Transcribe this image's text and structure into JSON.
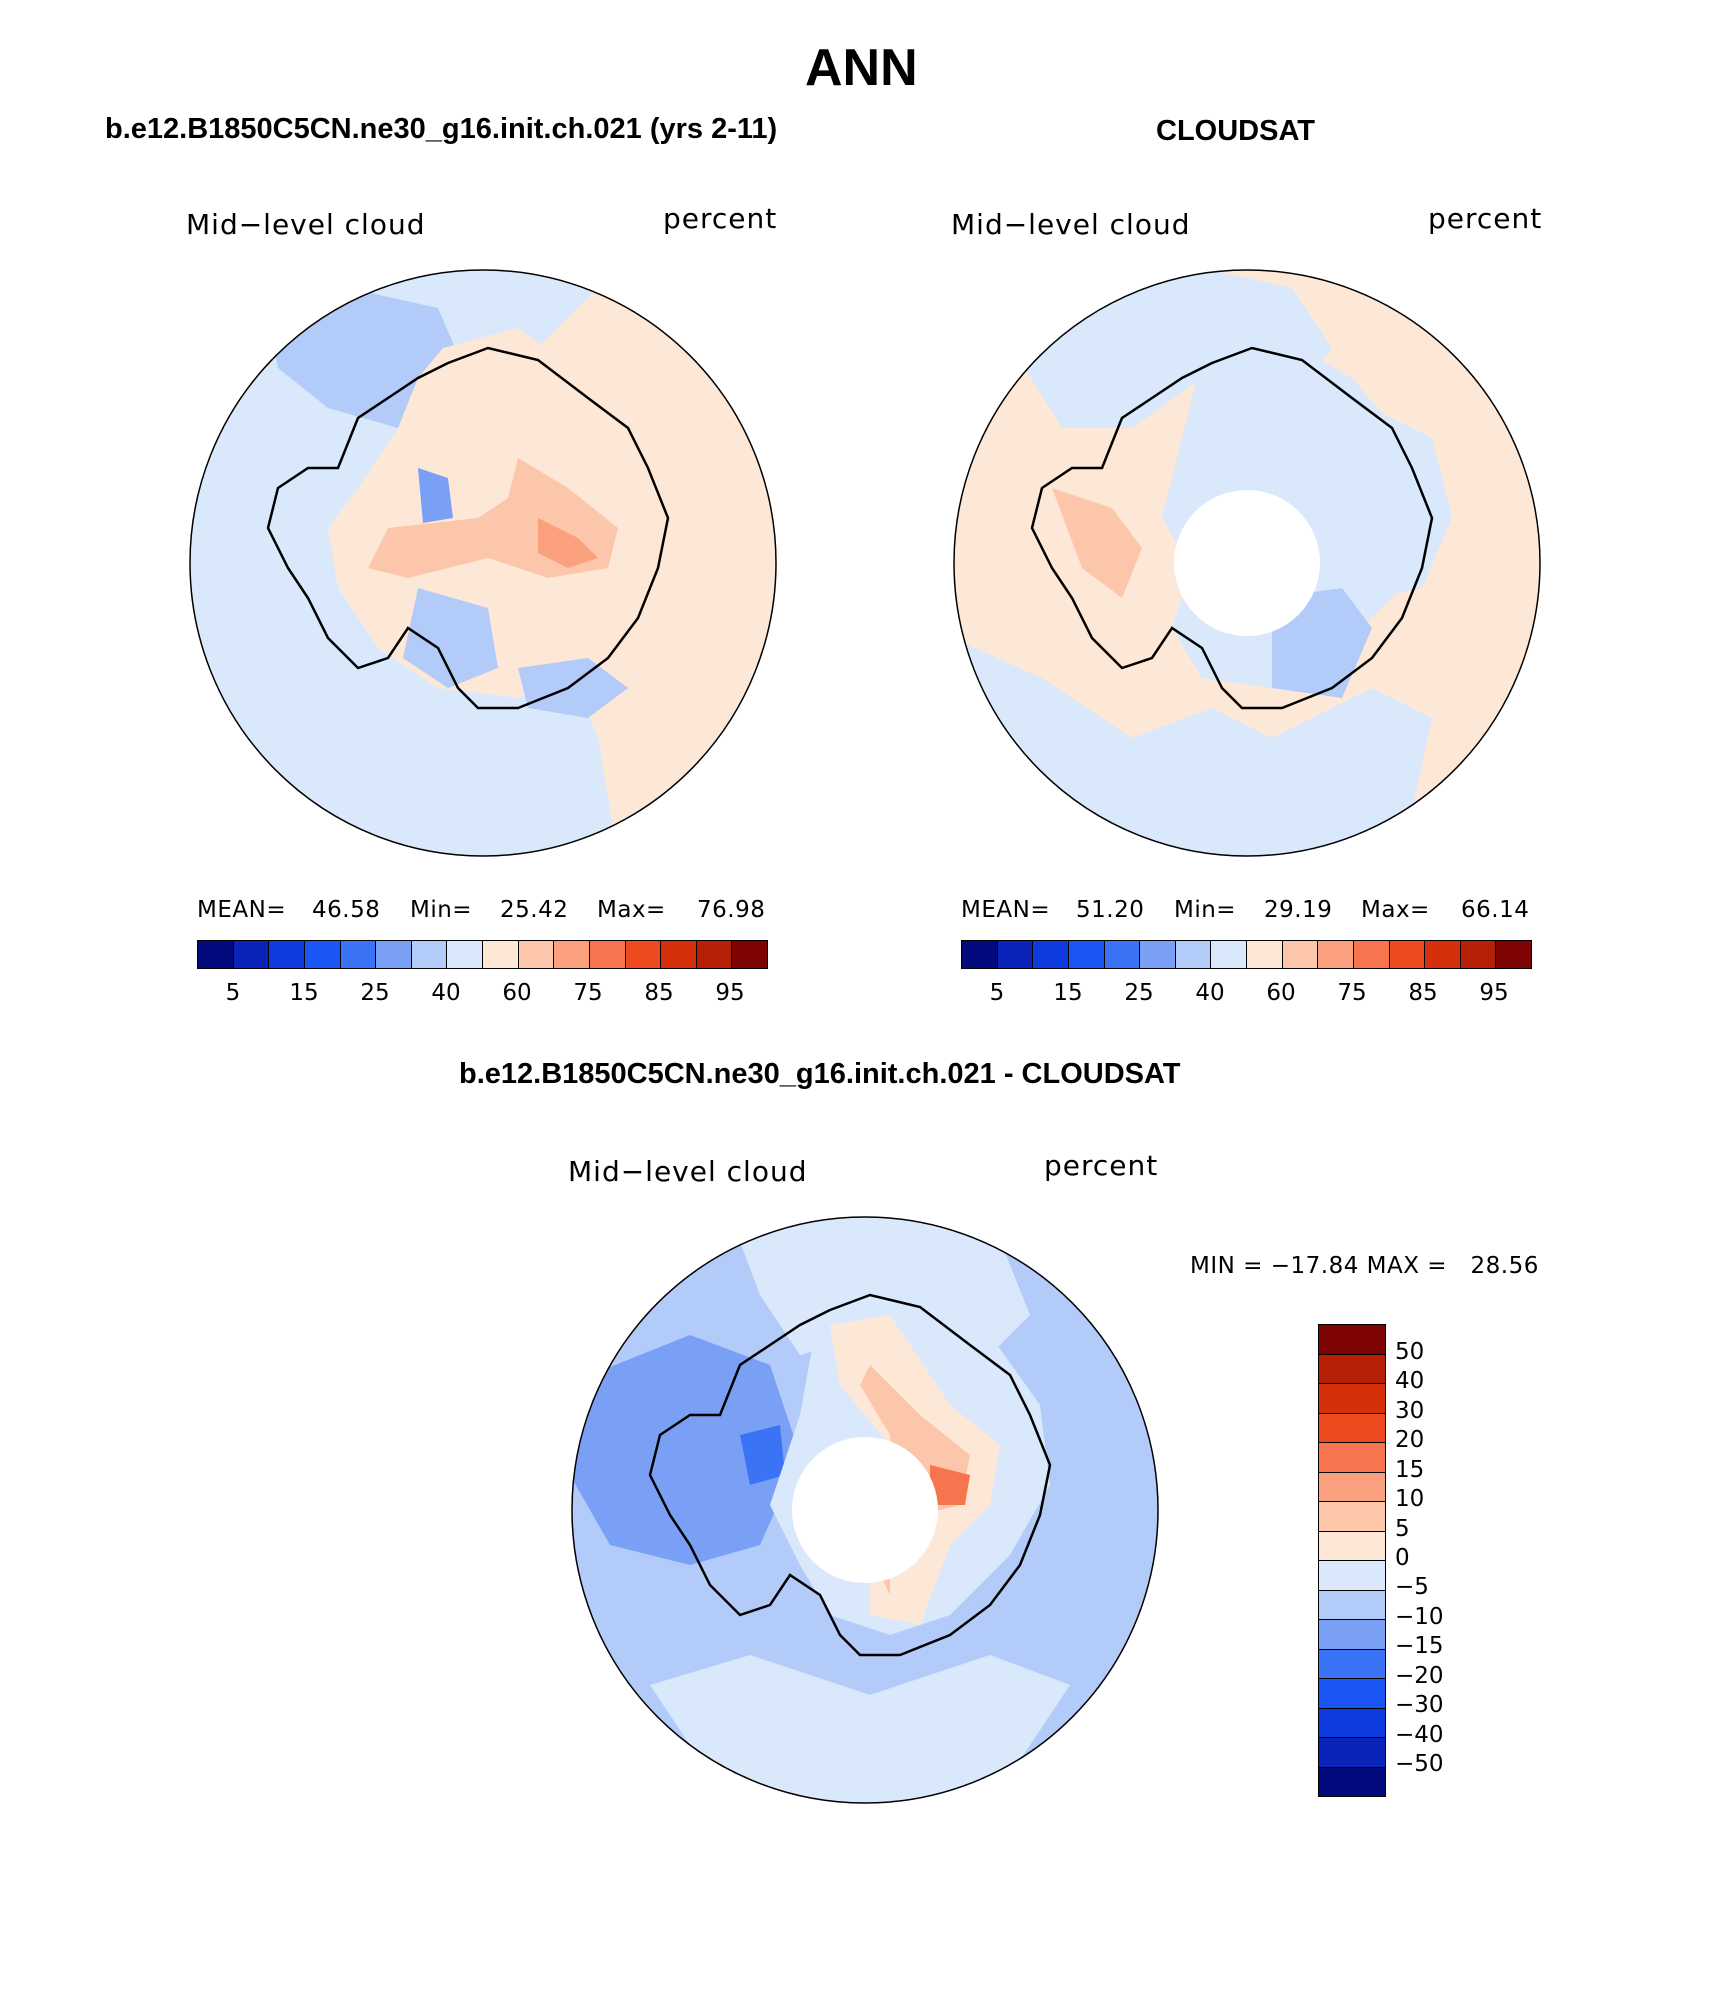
{
  "page_title": "ANN",
  "panels": [
    {
      "title": "b.e12.B1850C5CN.ne30_g16.init.ch.021 (yrs 2-11)",
      "variable": "Mid−level cloud",
      "units": "percent",
      "mean_label": "MEAN=",
      "mean": "46.58",
      "min_label": "Min=",
      "min": "25.42",
      "max_label": "Max=",
      "max": "76.98"
    },
    {
      "title": "CLOUDSAT",
      "variable": "Mid−level cloud",
      "units": "percent",
      "mean_label": "MEAN=",
      "mean": "51.20",
      "min_label": "Min=",
      "min": "29.19",
      "max_label": "Max=",
      "max": "66.14"
    }
  ],
  "diff_panel": {
    "title": "b.e12.B1850C5CN.ne30_g16.init.ch.021 - CLOUDSAT",
    "variable": "Mid−level cloud",
    "units": "percent",
    "minmax_text": "MIN = −17.84 MAX =   28.56"
  },
  "abs_colorbar": {
    "colors": [
      "#020a7e",
      "#0a23b8",
      "#0d3be0",
      "#1a56f5",
      "#3b73f7",
      "#7aa0f5",
      "#b3cbf9",
      "#d9e9fb",
      "#fde8d7",
      "#fcc6ab",
      "#fba07f",
      "#f6744e",
      "#ee4a20",
      "#d52f0b",
      "#b52007",
      "#7e0303"
    ],
    "ticks": [
      "5",
      "15",
      "25",
      "40",
      "60",
      "75",
      "85",
      "95"
    ]
  },
  "diff_colorbar": {
    "colors_top_to_bottom": [
      "#7e0303",
      "#b52007",
      "#d52f0b",
      "#ee4a20",
      "#f6744e",
      "#fba07f",
      "#fcc6ab",
      "#fde8d7",
      "#d9e9fb",
      "#b3cbf9",
      "#7aa0f5",
      "#3b73f7",
      "#1a56f5",
      "#0d3be0",
      "#0a23b8",
      "#020a7e"
    ],
    "ticks": [
      "50",
      "40",
      "30",
      "20",
      "15",
      "10",
      "5",
      "0",
      "−5",
      "−10",
      "−15",
      "−20",
      "−30",
      "−40",
      "−50"
    ]
  },
  "chart_data": {
    "type": "polar-map",
    "projection": "south polar stereographic",
    "maps": [
      "model",
      "observation",
      "difference"
    ]
  }
}
